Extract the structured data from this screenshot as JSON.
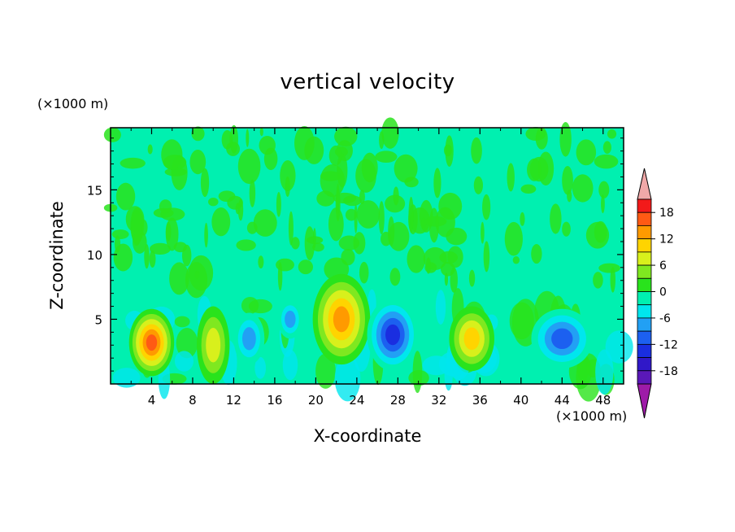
{
  "chart_data": {
    "type": "heatmap",
    "title": "vertical velocity",
    "xlabel": "X-coordinate",
    "ylabel": "Z-coordinate",
    "x_unit": "(x1000 m)",
    "y_unit": "(x1000 m)",
    "xlim": [
      0,
      50
    ],
    "ylim": [
      0,
      19.8
    ],
    "x_ticks": [
      "4",
      "8",
      "12",
      "16",
      "20",
      "24",
      "28",
      "32",
      "36",
      "40",
      "44",
      "48"
    ],
    "y_ticks": [
      "5",
      "10",
      "15"
    ],
    "colorbar": {
      "levels": [
        -21,
        -18,
        -15,
        -12,
        -9,
        -6,
        -3,
        0,
        3,
        6,
        9,
        12,
        15,
        18,
        21
      ],
      "tick_labels": [
        "18",
        "12",
        "6",
        "0",
        "-6",
        "-12",
        "-18"
      ],
      "tick_values": [
        18,
        12,
        6,
        0,
        -6,
        -12,
        -18
      ],
      "colors": [
        "#9e1ba8",
        "#5a18b8",
        "#3018c8",
        "#1a2ee0",
        "#1c60f0",
        "#22a0f4",
        "#00e6ee",
        "#00f0b0",
        "#29e31c",
        "#7fe820",
        "#d8f01c",
        "#ffd400",
        "#ff9a00",
        "#ff5a14",
        "#f21a1a",
        "#f0a8a8"
      ]
    },
    "cells": [
      {
        "x": 4,
        "z": 3.2,
        "w": 2.2,
        "h": 2.6,
        "v": 16
      },
      {
        "x": 10,
        "z": 3.0,
        "w": 1.6,
        "h": 3.0,
        "v": 8
      },
      {
        "x": 13.5,
        "z": 3.5,
        "w": 1.5,
        "h": 2.0,
        "v": -8
      },
      {
        "x": 17.5,
        "z": 5.0,
        "w": 1.2,
        "h": 1.5,
        "v": -9
      },
      {
        "x": 22.5,
        "z": 5.0,
        "w": 2.8,
        "h": 3.5,
        "v": 13
      },
      {
        "x": 27.5,
        "z": 3.8,
        "w": 2.5,
        "h": 2.8,
        "v": -15
      },
      {
        "x": 35.2,
        "z": 3.5,
        "w": 2.2,
        "h": 2.5,
        "v": 12
      },
      {
        "x": 44,
        "z": 3.5,
        "w": 3.0,
        "h": 2.3,
        "v": -12
      }
    ]
  }
}
